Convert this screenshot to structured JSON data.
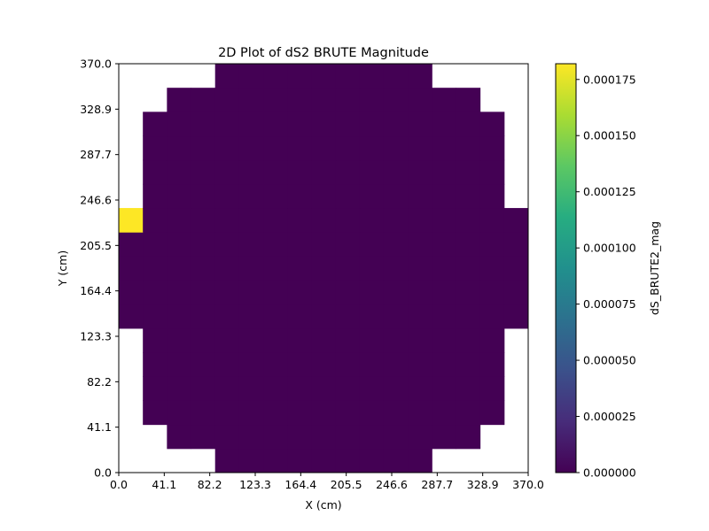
{
  "chart_data": {
    "type": "heatmap",
    "title": "2D Plot of dS2 BRUTE Magnitude",
    "xlabel": "X (cm)",
    "ylabel": "Y (cm)",
    "colorbar_label": "dS_BRUTE2_mag",
    "colormap": "viridis",
    "xlim": [
      0.0,
      370.0
    ],
    "ylim": [
      0.0,
      370.0
    ],
    "x_ticks": [
      "0.0",
      "41.1",
      "82.2",
      "123.3",
      "164.4",
      "205.5",
      "246.6",
      "287.7",
      "328.9",
      "370.0"
    ],
    "y_ticks": [
      "0.0",
      "41.1",
      "82.2",
      "123.3",
      "164.4",
      "205.5",
      "246.6",
      "287.7",
      "328.9",
      "370.0"
    ],
    "colorbar_range": [
      0.0,
      0.000182
    ],
    "colorbar_ticks": [
      "0.000000",
      "0.000025",
      "0.000050",
      "0.000075",
      "0.000100",
      "0.000125",
      "0.000150",
      "0.000175"
    ],
    "grid_cells": 17,
    "row_col_extents": [
      [
        4,
        12
      ],
      [
        2,
        14
      ],
      [
        1,
        15
      ],
      [
        1,
        15
      ],
      [
        1,
        15
      ],
      [
        1,
        15
      ],
      [
        0,
        16
      ],
      [
        0,
        16
      ],
      [
        0,
        16
      ],
      [
        0,
        16
      ],
      [
        0,
        16
      ],
      [
        1,
        15
      ],
      [
        1,
        15
      ],
      [
        1,
        15
      ],
      [
        1,
        15
      ],
      [
        2,
        14
      ],
      [
        4,
        12
      ]
    ],
    "base_value": 0.0,
    "hot_cells": [
      {
        "row": 10,
        "col": 0,
        "value": 0.000182
      }
    ]
  }
}
